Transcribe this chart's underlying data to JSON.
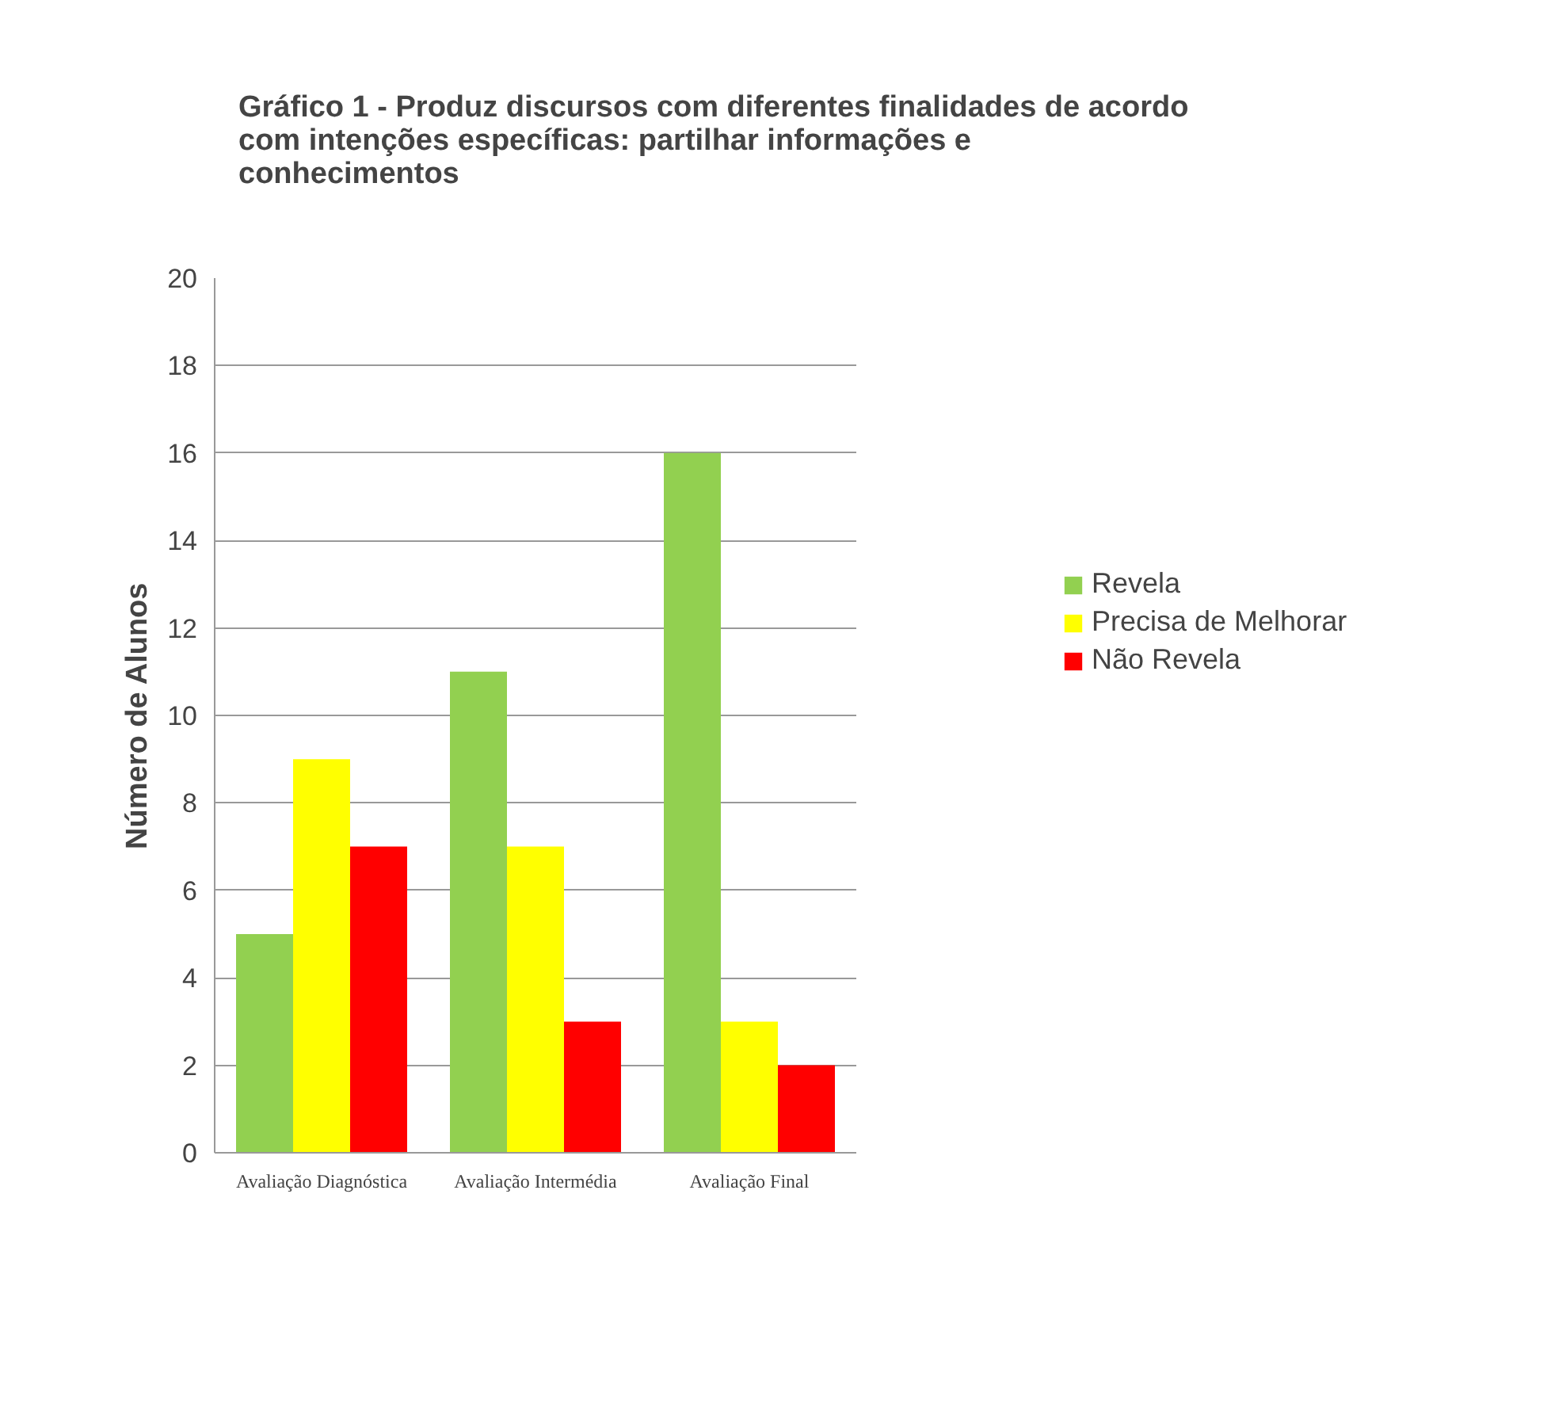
{
  "chart_data": {
    "type": "bar",
    "title": "Gráfico 1 - Produz discursos com diferentes finalidades de acordo\ncom intenções específicas: partilhar informações e\nconhecimentos",
    "ylabel": "Número de Alunos",
    "categories": [
      "Avaliação Diagnóstica",
      "Avaliação Intermédia",
      "Avaliação Final"
    ],
    "series": [
      {
        "name": "Revela",
        "color": "#92d050",
        "values": [
          5,
          11,
          16
        ]
      },
      {
        "name": "Precisa de Melhorar",
        "color": "#ffff00",
        "values": [
          9,
          7,
          3
        ]
      },
      {
        "name": "Não Revela",
        "color": "#ff0000",
        "values": [
          7,
          3,
          2
        ]
      }
    ],
    "ylim": [
      0,
      20
    ],
    "yticks": [
      0,
      2,
      4,
      6,
      8,
      10,
      12,
      14,
      16,
      18,
      20
    ],
    "grid": "y",
    "legend": "right"
  }
}
